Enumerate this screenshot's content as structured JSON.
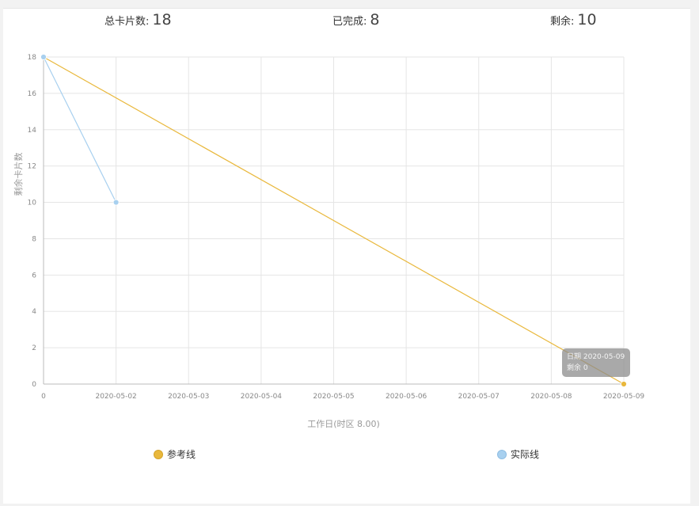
{
  "summary": {
    "total_label": "总卡片数:",
    "total_value": "18",
    "done_label": "已完成:",
    "done_value": "8",
    "remain_label": "剩余:",
    "remain_value": "10"
  },
  "tooltip": {
    "line1": "日期 2020-05-09",
    "line2": "剩余 0"
  },
  "colors": {
    "reference": "#e9b83c",
    "actual": "#a8d0ef",
    "grid": "#e5e5e5",
    "axis": "#bbbbbb"
  },
  "chart_data": {
    "type": "line",
    "xlabel": "工作日(时区 8.00)",
    "ylabel": "剩余卡片数",
    "categories": [
      "0",
      "2020-05-02",
      "2020-05-03",
      "2020-05-04",
      "2020-05-05",
      "2020-05-06",
      "2020-05-07",
      "2020-05-08",
      "2020-05-09"
    ],
    "ylim": [
      0,
      18
    ],
    "yticks": [
      0,
      2,
      4,
      6,
      8,
      10,
      12,
      14,
      16,
      18
    ],
    "grid": true,
    "legend_position": "bottom",
    "series": [
      {
        "name": "参考线",
        "points": [
          {
            "x": "0",
            "y": 18
          },
          {
            "x": "2020-05-09",
            "y": 0
          }
        ],
        "color": "#e9b83c"
      },
      {
        "name": "实际线",
        "points": [
          {
            "x": "0",
            "y": 18
          },
          {
            "x": "2020-05-02",
            "y": 10
          }
        ],
        "color": "#a8d0ef"
      }
    ]
  }
}
